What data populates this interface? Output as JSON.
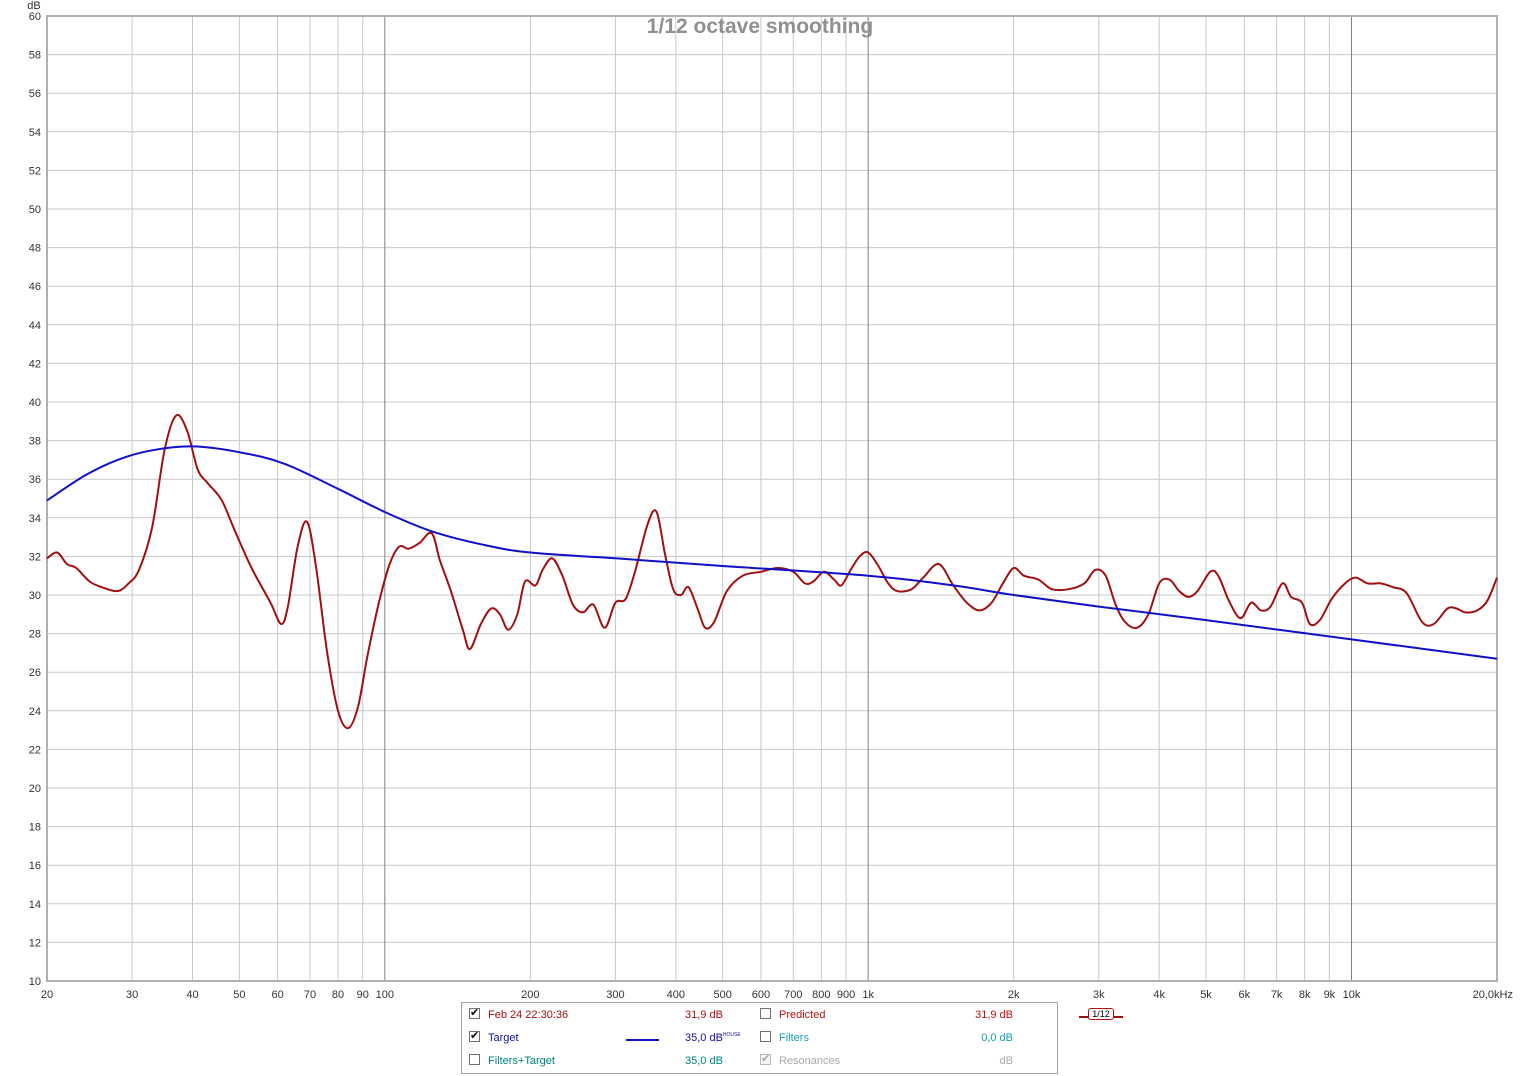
{
  "chart_data": {
    "type": "line",
    "title": "1/12 octave smoothing",
    "yunit": "dB",
    "ylim": [
      10,
      60
    ],
    "xlim": [
      20,
      20000
    ],
    "xscale": "log",
    "y_ticks": [
      "10",
      "12",
      "14",
      "16",
      "18",
      "20",
      "22",
      "24",
      "26",
      "28",
      "30",
      "32",
      "34",
      "36",
      "38",
      "40",
      "42",
      "44",
      "46",
      "48",
      "50",
      "52",
      "54",
      "56",
      "58",
      "60"
    ],
    "x_ticks": [
      {
        "value": 20,
        "label": "20"
      },
      {
        "value": 30,
        "label": "30"
      },
      {
        "value": 40,
        "label": "40"
      },
      {
        "value": 50,
        "label": "50"
      },
      {
        "value": 60,
        "label": "60"
      },
      {
        "value": 70,
        "label": "70"
      },
      {
        "value": 80,
        "label": "80"
      },
      {
        "value": 90,
        "label": "90"
      },
      {
        "value": 100,
        "label": "100"
      },
      {
        "value": 200,
        "label": "200"
      },
      {
        "value": 300,
        "label": "300"
      },
      {
        "value": 400,
        "label": "400"
      },
      {
        "value": 500,
        "label": "500"
      },
      {
        "value": 600,
        "label": "600"
      },
      {
        "value": 700,
        "label": "700"
      },
      {
        "value": 800,
        "label": "800"
      },
      {
        "value": 900,
        "label": "900"
      },
      {
        "value": 1000,
        "label": "1k"
      },
      {
        "value": 2000,
        "label": "2k"
      },
      {
        "value": 3000,
        "label": "3k"
      },
      {
        "value": 4000,
        "label": "4k"
      },
      {
        "value": 5000,
        "label": "5k"
      },
      {
        "value": 6000,
        "label": "6k"
      },
      {
        "value": 7000,
        "label": "7k"
      },
      {
        "value": 8000,
        "label": "8k"
      },
      {
        "value": 9000,
        "label": "9k"
      },
      {
        "value": 10000,
        "label": "10k"
      },
      {
        "value": 20000,
        "label": "20,0kHz"
      }
    ],
    "grid": true,
    "series": [
      {
        "name": "Feb 24 22:30:36",
        "color": "#a01010",
        "points": [
          [
            20,
            31.9
          ],
          [
            21,
            32.2
          ],
          [
            22,
            31.6
          ],
          [
            23,
            31.4
          ],
          [
            24.5,
            30.7
          ],
          [
            26,
            30.4
          ],
          [
            28,
            30.2
          ],
          [
            29.5,
            30.6
          ],
          [
            31,
            31.3
          ],
          [
            33,
            33.5
          ],
          [
            35,
            37.5
          ],
          [
            37,
            39.3
          ],
          [
            39,
            38.5
          ],
          [
            41,
            36.5
          ],
          [
            43,
            35.8
          ],
          [
            46,
            34.9
          ],
          [
            49,
            33.3
          ],
          [
            53,
            31.4
          ],
          [
            58,
            29.6
          ],
          [
            61,
            28.5
          ],
          [
            63,
            29.4
          ],
          [
            66,
            32.5
          ],
          [
            69,
            33.8
          ],
          [
            72,
            31.5
          ],
          [
            76,
            27
          ],
          [
            80,
            24
          ],
          [
            84,
            23.1
          ],
          [
            88,
            24.2
          ],
          [
            92,
            26.8
          ],
          [
            97,
            29.5
          ],
          [
            102,
            31.5
          ],
          [
            107,
            32.5
          ],
          [
            112,
            32.4
          ],
          [
            118,
            32.7
          ],
          [
            125,
            33.2
          ],
          [
            130,
            31.8
          ],
          [
            137,
            30.2
          ],
          [
            145,
            28.2
          ],
          [
            150,
            27.2
          ],
          [
            158,
            28.5
          ],
          [
            166,
            29.3
          ],
          [
            173,
            29
          ],
          [
            180,
            28.2
          ],
          [
            188,
            29
          ],
          [
            195,
            30.7
          ],
          [
            205,
            30.5
          ],
          [
            212,
            31.3
          ],
          [
            222,
            31.9
          ],
          [
            233,
            31
          ],
          [
            245,
            29.5
          ],
          [
            257,
            29.1
          ],
          [
            270,
            29.5
          ],
          [
            285,
            28.3
          ],
          [
            300,
            29.6
          ],
          [
            315,
            29.8
          ],
          [
            330,
            31.3
          ],
          [
            350,
            33.7
          ],
          [
            365,
            34.3
          ],
          [
            380,
            32.1
          ],
          [
            395,
            30.3
          ],
          [
            410,
            30
          ],
          [
            425,
            30.4
          ],
          [
            445,
            29.2
          ],
          [
            460,
            28.3
          ],
          [
            480,
            28.6
          ],
          [
            510,
            30.2
          ],
          [
            550,
            31
          ],
          [
            600,
            31.2
          ],
          [
            650,
            31.4
          ],
          [
            700,
            31.2
          ],
          [
            740,
            30.6
          ],
          [
            770,
            30.7
          ],
          [
            810,
            31.2
          ],
          [
            850,
            30.8
          ],
          [
            880,
            30.5
          ],
          [
            920,
            31.3
          ],
          [
            960,
            32
          ],
          [
            1000,
            32.2
          ],
          [
            1050,
            31.5
          ],
          [
            1100,
            30.6
          ],
          [
            1150,
            30.2
          ],
          [
            1230,
            30.3
          ],
          [
            1300,
            30.9
          ],
          [
            1400,
            31.6
          ],
          [
            1500,
            30.5
          ],
          [
            1600,
            29.6
          ],
          [
            1700,
            29.2
          ],
          [
            1800,
            29.6
          ],
          [
            1900,
            30.6
          ],
          [
            2000,
            31.4
          ],
          [
            2100,
            31
          ],
          [
            2250,
            30.8
          ],
          [
            2400,
            30.3
          ],
          [
            2600,
            30.3
          ],
          [
            2800,
            30.6
          ],
          [
            2950,
            31.3
          ],
          [
            3100,
            31
          ],
          [
            3250,
            29.5
          ],
          [
            3400,
            28.6
          ],
          [
            3600,
            28.3
          ],
          [
            3800,
            29
          ],
          [
            4000,
            30.6
          ],
          [
            4200,
            30.8
          ],
          [
            4400,
            30.2
          ],
          [
            4600,
            29.9
          ],
          [
            4800,
            30.2
          ],
          [
            5100,
            31.2
          ],
          [
            5300,
            31
          ],
          [
            5600,
            29.6
          ],
          [
            5900,
            28.8
          ],
          [
            6200,
            29.6
          ],
          [
            6500,
            29.2
          ],
          [
            6800,
            29.4
          ],
          [
            7200,
            30.6
          ],
          [
            7500,
            29.9
          ],
          [
            7900,
            29.6
          ],
          [
            8200,
            28.5
          ],
          [
            8600,
            28.7
          ],
          [
            9100,
            29.8
          ],
          [
            9700,
            30.6
          ],
          [
            10200,
            30.9
          ],
          [
            10800,
            30.6
          ],
          [
            11500,
            30.6
          ],
          [
            12200,
            30.4
          ],
          [
            13000,
            30.1
          ],
          [
            14000,
            28.6
          ],
          [
            14800,
            28.5
          ],
          [
            15800,
            29.3
          ],
          [
            16500,
            29.3
          ],
          [
            17200,
            29.1
          ],
          [
            18200,
            29.2
          ],
          [
            19100,
            29.7
          ],
          [
            20000,
            30.9
          ]
        ]
      },
      {
        "name": "Target",
        "color": "#1010c8",
        "points": [
          [
            20,
            34.9
          ],
          [
            24,
            36.2
          ],
          [
            28,
            37
          ],
          [
            33,
            37.5
          ],
          [
            40,
            37.7
          ],
          [
            50,
            37.4
          ],
          [
            62,
            36.8
          ],
          [
            80,
            35.5
          ],
          [
            100,
            34.3
          ],
          [
            125,
            33.3
          ],
          [
            160,
            32.6
          ],
          [
            200,
            32.2
          ],
          [
            300,
            31.9
          ],
          [
            500,
            31.5
          ],
          [
            1000,
            31
          ],
          [
            1500,
            30.5
          ],
          [
            2000,
            30
          ],
          [
            3000,
            29.4
          ],
          [
            5000,
            28.7
          ],
          [
            10000,
            27.7
          ],
          [
            20000,
            26.7
          ]
        ]
      }
    ],
    "legend": {
      "rows": [
        {
          "left": {
            "checked": true,
            "disabled": false,
            "label": "Feb 24 22:30:36",
            "color": "#a01010"
          },
          "swatch": "smoothing",
          "smoothing_label": "1/12",
          "value": "31,9 dB",
          "value_color": "#a01010",
          "value_sup": "",
          "right": {
            "checked": false,
            "disabled": false,
            "label": "Predicted",
            "color": "#c01010"
          },
          "right_value": "31,9 dB",
          "right_value_color": "#c01010"
        },
        {
          "left": {
            "checked": true,
            "disabled": false,
            "label": "Target",
            "color": "#1010a0"
          },
          "swatch": "line",
          "swatch_color": "#1010c8",
          "value": "35,0 dB",
          "value_color": "#1010a0",
          "value_sup": "HOUSE",
          "right": {
            "checked": false,
            "disabled": false,
            "label": "Filters",
            "color": "#10a0b0"
          },
          "right_value": "0,0 dB",
          "right_value_color": "#10a0b0"
        },
        {
          "left": {
            "checked": false,
            "disabled": false,
            "label": "Filters+Target",
            "color": "#008080"
          },
          "swatch": "none",
          "value": "35,0 dB",
          "value_color": "#008080",
          "value_sup": "",
          "right": {
            "checked": true,
            "disabled": true,
            "label": "Resonances",
            "color": "#a8a8a8"
          },
          "right_value": "dB",
          "right_value_color": "#a8a8a8"
        }
      ]
    }
  }
}
